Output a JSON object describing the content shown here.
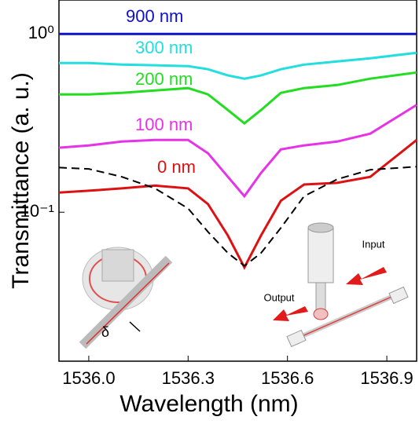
{
  "chart_data": {
    "type": "line",
    "x_label": "Wavelength (nm)",
    "y_label": "Transmittance (a. u.)",
    "log_y": true,
    "xlim": [
      1535.91,
      1536.99
    ],
    "ylim": [
      0.0146,
      1.55
    ],
    "xticks": [
      {
        "value": 1536.0,
        "label": "1536.0"
      },
      1536.3,
      1536.6,
      1536.9
    ],
    "yticks": [
      {
        "value": 1,
        "label": "10⁰"
      },
      {
        "value": 0.1,
        "label": "10⁻¹"
      }
    ],
    "x": [
      1535.91,
      1536.0,
      1536.1,
      1536.2,
      1536.3,
      1536.36,
      1536.42,
      1536.47,
      1536.52,
      1536.58,
      1536.65,
      1536.75,
      1536.85,
      1536.99
    ],
    "series": [
      {
        "name": "900 nm",
        "color": "#1010c8",
        "values": [
          1,
          1,
          1,
          1,
          1,
          1,
          1,
          1,
          1,
          1,
          1,
          1,
          1,
          1
        ]
      },
      {
        "name": "300 nm",
        "color": "#22dede",
        "values": [
          0.687,
          0.687,
          0.673,
          0.667,
          0.66,
          0.634,
          0.585,
          0.561,
          0.585,
          0.634,
          0.673,
          0.701,
          0.73,
          0.784
        ]
      },
      {
        "name": "200 nm",
        "color": "#22dd22",
        "values": [
          0.458,
          0.458,
          0.467,
          0.482,
          0.497,
          0.458,
          0.374,
          0.315,
          0.374,
          0.467,
          0.497,
          0.517,
          0.561,
          0.608
        ]
      },
      {
        "name": "100 nm",
        "color": "#e633e6",
        "values": [
          0.23,
          0.237,
          0.249,
          0.254,
          0.254,
          0.214,
          0.158,
          0.123,
          0.166,
          0.225,
          0.237,
          0.249,
          0.276,
          0.4
        ]
      },
      {
        "name": "0 nm",
        "color": "#dd1111",
        "values": [
          0.129,
          0.132,
          0.136,
          0.141,
          0.136,
          0.111,
          0.074,
          0.049,
          0.074,
          0.116,
          0.143,
          0.146,
          0.158,
          0.254
        ]
      },
      {
        "color": "#000000",
        "dashed": true,
        "values": [
          0.178,
          0.175,
          0.158,
          0.136,
          0.105,
          0.0776,
          0.059,
          0.05,
          0.059,
          0.0817,
          0.123,
          0.153,
          0.173,
          0.18
        ]
      }
    ],
    "annotations": [
      "Input",
      "Output",
      "δ"
    ]
  }
}
